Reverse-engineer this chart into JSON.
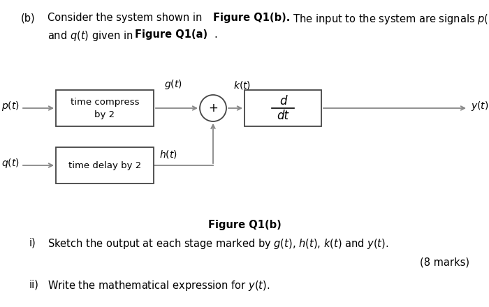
{
  "bg_color": "#ffffff",
  "box1_label": "time compress\nby 2",
  "box2_label": "time delay by 2",
  "box3_label_top": "d",
  "box3_label_bot": "dt",
  "input1_label": "$p(t)$",
  "input2_label": "$q(t)$",
  "signal_g": "$g(t)$",
  "signal_h": "$h(t)$",
  "signal_k": "$k(t)$",
  "signal_y": "$y(t)$",
  "figure_caption": "Figure Q1(b)",
  "line_color": "#888888",
  "box_edge_color": "#444444",
  "fontsize_main": 10.5,
  "fontsize_label": 10,
  "fontsize_signal": 10
}
